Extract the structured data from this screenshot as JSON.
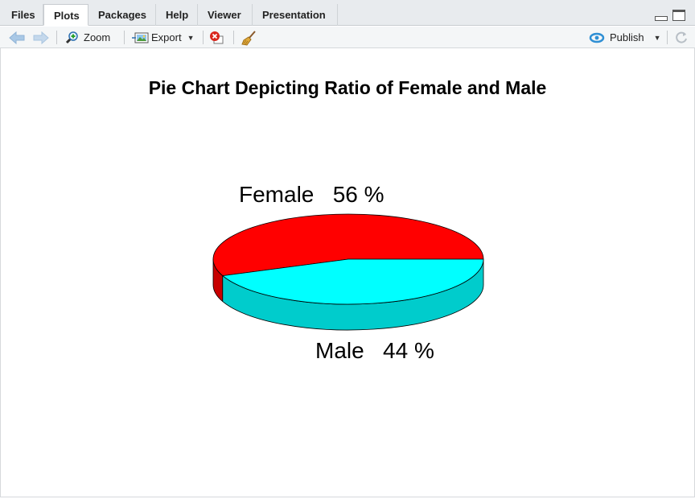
{
  "tabs": [
    {
      "label": "Files",
      "active": false
    },
    {
      "label": "Plots",
      "active": true
    },
    {
      "label": "Packages",
      "active": false
    },
    {
      "label": "Help",
      "active": false
    },
    {
      "label": "Viewer",
      "active": false
    },
    {
      "label": "Presentation",
      "active": false
    }
  ],
  "toolbar": {
    "zoom_label": "Zoom",
    "export_label": "Export",
    "publish_label": "Publish"
  },
  "icons": {
    "back": "arrow-left-icon",
    "forward": "arrow-right-icon",
    "zoom": "magnifier-icon",
    "export": "image-export-icon",
    "remove": "remove-plot-icon",
    "clear": "broom-icon",
    "publish": "publish-icon",
    "refresh": "refresh-icon"
  },
  "colors": {
    "female_slice": "#ff0000",
    "male_slice": "#00ffff",
    "female_side": "#c80000",
    "male_side": "#00cccc"
  },
  "chart_data": {
    "type": "pie",
    "title": "Pie Chart Depicting Ratio of Female and Male",
    "categories": [
      "Female",
      "Male"
    ],
    "values": [
      56,
      44
    ],
    "labels": [
      "Female   56 %",
      "Male   44 %"
    ],
    "style": "3d"
  }
}
